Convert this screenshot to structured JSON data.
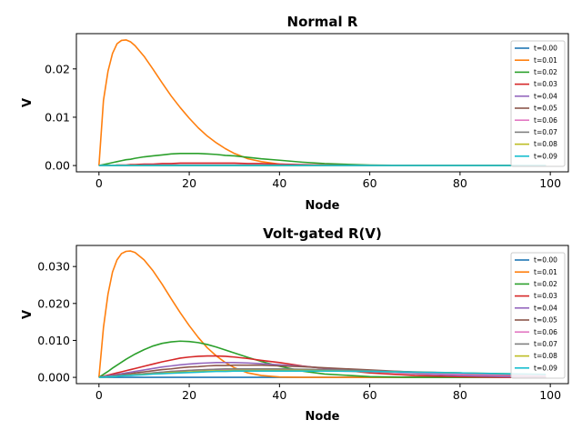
{
  "chart_data": [
    {
      "type": "line",
      "title": "Normal R",
      "xlabel": "Node",
      "ylabel": "V",
      "xlim": [
        -5,
        104
      ],
      "ylim": [
        -0.0013,
        0.0273
      ],
      "xticks": [
        0,
        20,
        40,
        60,
        80,
        100
      ],
      "xtick_labels": [
        "0",
        "20",
        "40",
        "60",
        "80",
        "100"
      ],
      "yticks": [
        0,
        0.01,
        0.02
      ],
      "ytick_labels": [
        "0.00",
        "0.01",
        "0.02"
      ],
      "grid": false,
      "legend": "upper right",
      "colors": [
        "#1f77b4",
        "#ff7f0e",
        "#2ca02c",
        "#d62728",
        "#9467bd",
        "#8c564b",
        "#e377c2",
        "#7f7f7f",
        "#bcbd22",
        "#17becf"
      ],
      "x": [
        0,
        1,
        2,
        3,
        4,
        5,
        6,
        7,
        8,
        10,
        12,
        14,
        16,
        18,
        20,
        22,
        24,
        26,
        28,
        30,
        33,
        36,
        40,
        45,
        50,
        60,
        70,
        80,
        90,
        99
      ],
      "series": [
        {
          "name": "t=0.00",
          "values": [
            0,
            0,
            0,
            0,
            0,
            0,
            0,
            0,
            0,
            0,
            0,
            0,
            0,
            0,
            0,
            0,
            0,
            0,
            0,
            0,
            0,
            0,
            0,
            0,
            0,
            0,
            0,
            0,
            0,
            0
          ]
        },
        {
          "name": "t=0.01",
          "values": [
            0,
            0.0135,
            0.0195,
            0.0232,
            0.0252,
            0.0259,
            0.026,
            0.0256,
            0.0248,
            0.0226,
            0.0199,
            0.0171,
            0.0144,
            0.012,
            0.0098,
            0.0078,
            0.0061,
            0.0047,
            0.0035,
            0.0025,
            0.0014,
            0.0008,
            0.0003,
            0.0001,
            0,
            0,
            0,
            0,
            0,
            0
          ]
        },
        {
          "name": "t=0.02",
          "values": [
            0,
            0.0002,
            0.0004,
            0.0006,
            0.0008,
            0.001,
            0.0012,
            0.0013,
            0.0015,
            0.0018,
            0.002,
            0.0022,
            0.0024,
            0.0025,
            0.0025,
            0.0025,
            0.0024,
            0.0023,
            0.0021,
            0.002,
            0.0017,
            0.0014,
            0.0011,
            0.0007,
            0.0004,
            0.0001,
            0,
            0,
            0,
            0
          ]
        },
        {
          "name": "t=0.03",
          "values": [
            0,
            0,
            0,
            0,
            0.0001,
            0.0001,
            0.0001,
            0.0002,
            0.0002,
            0.0003,
            0.0003,
            0.0004,
            0.0004,
            0.0005,
            0.0005,
            0.0005,
            0.0005,
            0.0005,
            0.0005,
            0.0005,
            0.0004,
            0.0004,
            0.0003,
            0.0002,
            0.0001,
            0,
            0,
            0,
            0,
            0
          ]
        },
        {
          "name": "t=0.04",
          "values": [
            0,
            0,
            0,
            0,
            0,
            0,
            0,
            0,
            0,
            0.0001,
            0.0001,
            0.0001,
            0.0001,
            0.0001,
            0.0001,
            0.0001,
            0.0001,
            0.0001,
            0.0001,
            0.0001,
            0.0001,
            0.0001,
            0.0001,
            0.0001,
            0,
            0,
            0,
            0,
            0,
            0
          ]
        },
        {
          "name": "t=0.05",
          "values": [
            0,
            0,
            0,
            0,
            0,
            0,
            0,
            0,
            0,
            0,
            0,
            0,
            0,
            0,
            0,
            0,
            0,
            0,
            0,
            0,
            0,
            0,
            0,
            0,
            0,
            0,
            0,
            0,
            0,
            0
          ]
        },
        {
          "name": "t=0.06",
          "values": [
            0,
            0,
            0,
            0,
            0,
            0,
            0,
            0,
            0,
            0,
            0,
            0,
            0,
            0,
            0,
            0,
            0,
            0,
            0,
            0,
            0,
            0,
            0,
            0,
            0,
            0,
            0,
            0,
            0,
            0
          ]
        },
        {
          "name": "t=0.07",
          "values": [
            0,
            0,
            0,
            0,
            0,
            0,
            0,
            0,
            0,
            0,
            0,
            0,
            0,
            0,
            0,
            0,
            0,
            0,
            0,
            0,
            0,
            0,
            0,
            0,
            0,
            0,
            0,
            0,
            0,
            0
          ]
        },
        {
          "name": "t=0.08",
          "values": [
            0,
            0,
            0,
            0,
            0,
            0,
            0,
            0,
            0,
            0,
            0,
            0,
            0,
            0,
            0,
            0,
            0,
            0,
            0,
            0,
            0,
            0,
            0,
            0,
            0,
            0,
            0,
            0,
            0,
            0
          ]
        },
        {
          "name": "t=0.09",
          "values": [
            0,
            0,
            0,
            0,
            0,
            0,
            0,
            0,
            0,
            0,
            0,
            0,
            0,
            0,
            0,
            0,
            0,
            0,
            0,
            0,
            0,
            0,
            0,
            0,
            0,
            0,
            0,
            0,
            0,
            0
          ]
        }
      ]
    },
    {
      "type": "line",
      "title": "Volt-gated R(V)",
      "xlabel": "Node",
      "ylabel": "V",
      "xlim": [
        -5,
        104
      ],
      "ylim": [
        -0.0017,
        0.0357
      ],
      "xticks": [
        0,
        20,
        40,
        60,
        80,
        100
      ],
      "xtick_labels": [
        "0",
        "20",
        "40",
        "60",
        "80",
        "100"
      ],
      "yticks": [
        0,
        0.01,
        0.02,
        0.03
      ],
      "ytick_labels": [
        "0.000",
        "0.010",
        "0.020",
        "0.030"
      ],
      "grid": false,
      "legend": "upper right",
      "colors": [
        "#1f77b4",
        "#ff7f0e",
        "#2ca02c",
        "#d62728",
        "#9467bd",
        "#8c564b",
        "#e377c2",
        "#7f7f7f",
        "#bcbd22",
        "#17becf"
      ],
      "x": [
        0,
        1,
        2,
        3,
        4,
        5,
        6,
        7,
        8,
        10,
        12,
        14,
        16,
        18,
        20,
        22,
        24,
        26,
        28,
        30,
        33,
        36,
        40,
        45,
        50,
        60,
        70,
        80,
        90,
        99
      ],
      "series": [
        {
          "name": "t=0.00",
          "values": [
            0,
            0,
            0,
            0,
            0,
            0,
            0,
            0,
            0,
            0,
            0,
            0,
            0,
            0,
            0,
            0,
            0,
            0,
            0,
            0,
            0,
            0,
            0,
            0,
            0,
            0,
            0,
            0,
            0,
            0
          ]
        },
        {
          "name": "t=0.01",
          "values": [
            0,
            0.0135,
            0.0225,
            0.0285,
            0.0318,
            0.0335,
            0.0341,
            0.0342,
            0.0338,
            0.0318,
            0.0288,
            0.0252,
            0.0213,
            0.0175,
            0.014,
            0.0108,
            0.008,
            0.0058,
            0.004,
            0.0026,
            0.0012,
            0.0005,
            0.0001,
            0,
            0,
            0,
            0,
            0,
            0,
            0
          ]
        },
        {
          "name": "t=0.02",
          "values": [
            0,
            0.0008,
            0.0016,
            0.0025,
            0.0033,
            0.0041,
            0.0049,
            0.0056,
            0.0063,
            0.0075,
            0.0085,
            0.0092,
            0.0096,
            0.0098,
            0.0097,
            0.0094,
            0.0089,
            0.0082,
            0.0074,
            0.0066,
            0.0054,
            0.0043,
            0.003,
            0.0017,
            0.0009,
            0.0002,
            0,
            0,
            0,
            0
          ]
        },
        {
          "name": "t=0.03",
          "values": [
            0,
            0.0003,
            0.0006,
            0.0009,
            0.0012,
            0.0015,
            0.0018,
            0.0021,
            0.0024,
            0.003,
            0.0036,
            0.0042,
            0.0047,
            0.0052,
            0.0055,
            0.0057,
            0.0058,
            0.0058,
            0.0057,
            0.0055,
            0.0051,
            0.0046,
            0.004,
            0.0031,
            0.0024,
            0.0012,
            0.0005,
            0.0002,
            0,
            0
          ]
        },
        {
          "name": "t=0.04",
          "values": [
            0,
            0.0002,
            0.0004,
            0.0006,
            0.0008,
            0.001,
            0.0012,
            0.0014,
            0.0016,
            0.002,
            0.0024,
            0.0028,
            0.0031,
            0.0034,
            0.0036,
            0.0038,
            0.0039,
            0.004,
            0.004,
            0.004,
            0.0039,
            0.0037,
            0.0034,
            0.003,
            0.0025,
            0.0017,
            0.001,
            0.0005,
            0.0002,
            0.0001
          ]
        },
        {
          "name": "t=0.05",
          "values": [
            0,
            0.0001,
            0.0003,
            0.0004,
            0.0006,
            0.0007,
            0.0009,
            0.001,
            0.0012,
            0.0015,
            0.0018,
            0.0021,
            0.0023,
            0.0026,
            0.0028,
            0.0029,
            0.0031,
            0.0032,
            0.0032,
            0.0033,
            0.0033,
            0.0033,
            0.0031,
            0.0029,
            0.0026,
            0.002,
            0.0014,
            0.0009,
            0.0005,
            0.0002
          ]
        },
        {
          "name": "t=0.06",
          "values": [
            0,
            0.0001,
            0.0002,
            0.0003,
            0.0004,
            0.0005,
            0.0006,
            0.0007,
            0.0008,
            0.001,
            0.0012,
            0.0014,
            0.0016,
            0.0018,
            0.0019,
            0.002,
            0.0021,
            0.0022,
            0.0022,
            0.0022,
            0.0022,
            0.0022,
            0.0021,
            0.002,
            0.0018,
            0.0015,
            0.0012,
            0.0009,
            0.0006,
            0.0004
          ]
        },
        {
          "name": "t=0.07",
          "values": [
            0,
            0.0001,
            0.0002,
            0.0003,
            0.0004,
            0.0005,
            0.0006,
            0.0007,
            0.0008,
            0.001,
            0.0012,
            0.0014,
            0.0016,
            0.0017,
            0.0019,
            0.002,
            0.0021,
            0.0022,
            0.0023,
            0.0023,
            0.0023,
            0.0023,
            0.0023,
            0.0022,
            0.0021,
            0.0018,
            0.0015,
            0.0012,
            0.0009,
            0.0007
          ]
        },
        {
          "name": "t=0.08",
          "values": [
            0,
            0.0001,
            0.0002,
            0.0002,
            0.0003,
            0.0004,
            0.0005,
            0.0006,
            0.0007,
            0.0008,
            0.001,
            0.0011,
            0.0013,
            0.0014,
            0.0015,
            0.0016,
            0.0017,
            0.0018,
            0.0018,
            0.0019,
            0.0019,
            0.0019,
            0.0019,
            0.0019,
            0.0018,
            0.0016,
            0.0014,
            0.0012,
            0.001,
            0.0008
          ]
        },
        {
          "name": "t=0.09",
          "values": [
            0,
            0.0001,
            0.0002,
            0.0002,
            0.0003,
            0.0004,
            0.0005,
            0.0005,
            0.0006,
            0.0007,
            0.0009,
            0.001,
            0.0011,
            0.0012,
            0.0013,
            0.0014,
            0.0015,
            0.0016,
            0.0016,
            0.0017,
            0.0017,
            0.0017,
            0.0017,
            0.0017,
            0.0017,
            0.0016,
            0.0014,
            0.0012,
            0.001,
            0.0008
          ]
        }
      ]
    }
  ]
}
